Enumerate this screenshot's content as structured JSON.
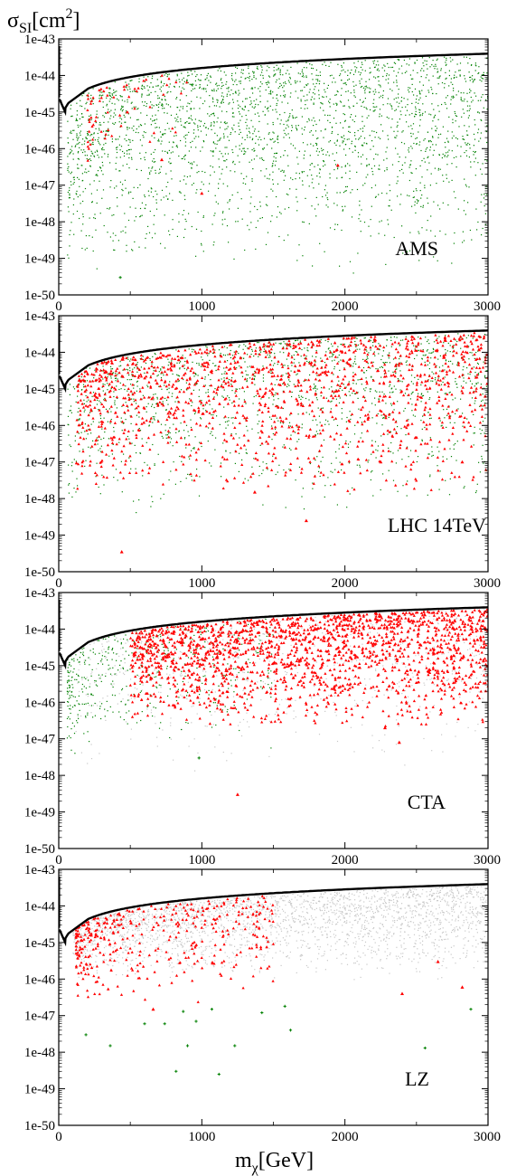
{
  "colors": {
    "background": "#ffffff",
    "allowed_scan": "#008000",
    "detectable": "#ff0000",
    "excluded_gray": "#c8c8c8",
    "limit_curve": "#000000"
  },
  "axes": {
    "ylabel": {
      "main": "σ",
      "sub": "SI",
      "unit_open": "[cm",
      "unit_sup": "2",
      "unit_close": "]"
    },
    "xlabel": {
      "main": "m",
      "sub": "χ",
      "unit": "[GeV]"
    }
  },
  "chart_data": [
    {
      "type": "scatter",
      "panel_label": "AMS",
      "xlim": [
        0,
        3000
      ],
      "ylim": [
        1e-50,
        1e-43
      ],
      "yscale": "log",
      "xticks": [
        "0",
        "1000",
        "2000",
        "3000"
      ],
      "yticks": [
        "1e-50",
        "1e-49",
        "1e-48",
        "1e-47",
        "1e-46",
        "1e-45",
        "1e-44",
        "1e-43"
      ],
      "grid": false,
      "layers": [
        {
          "role": "gray",
          "count": 0,
          "xmin": 120,
          "xmax": 3000,
          "ylogmin": -46.0,
          "xdensity": "uniform",
          "seed": 11
        },
        {
          "role": "green",
          "count": 2600,
          "xmin": 60,
          "xmax": 3000,
          "ylogmin": -49.5,
          "xdensity": "uniform",
          "seed": 12
        },
        {
          "role": "red",
          "count": 60,
          "xmin": 200,
          "xmax": 900,
          "ylogmin": -46.5,
          "xdensity": "low",
          "seed": 13
        }
      ],
      "outliers": [
        {
          "x": 430,
          "y": 3e-50,
          "color": "green"
        },
        {
          "x": 1950,
          "y": 3.5e-47,
          "color": "red"
        },
        {
          "x": 1000,
          "y": 6e-48,
          "color": "red"
        },
        {
          "x": 720,
          "y": 5e-47,
          "color": "red"
        }
      ]
    },
    {
      "type": "scatter",
      "panel_label": "LHC 14TeV",
      "xlim": [
        0,
        3000
      ],
      "ylim": [
        1e-50,
        1e-43
      ],
      "yscale": "log",
      "xticks": [
        "0",
        "1000",
        "2000",
        "3000"
      ],
      "yticks": [
        "1e-50",
        "1e-49",
        "1e-48",
        "1e-47",
        "1e-46",
        "1e-45",
        "1e-44",
        "1e-43"
      ],
      "grid": false,
      "layers": [
        {
          "role": "gray",
          "count": 0,
          "xmin": 120,
          "xmax": 3000,
          "ylogmin": -46.0,
          "xdensity": "uniform",
          "seed": 21
        },
        {
          "role": "green",
          "count": 1500,
          "xmin": 60,
          "xmax": 3000,
          "ylogmin": -48.5,
          "xdensity": "uniform",
          "seed": 22
        },
        {
          "role": "red",
          "count": 1300,
          "xmin": 120,
          "xmax": 3000,
          "ylogmin": -48.0,
          "xdensity": "uniform",
          "seed": 23
        }
      ],
      "outliers": [
        {
          "x": 440,
          "y": 3.5e-50,
          "color": "red"
        },
        {
          "x": 1730,
          "y": 2.5e-49,
          "color": "red"
        },
        {
          "x": 1370,
          "y": 1.5e-48,
          "color": "red"
        },
        {
          "x": 2250,
          "y": 1e-47,
          "color": "red"
        },
        {
          "x": 2820,
          "y": 1e-47,
          "color": "red"
        }
      ]
    },
    {
      "type": "scatter",
      "panel_label": "CTA",
      "xlim": [
        0,
        3000
      ],
      "ylim": [
        1e-50,
        1e-43
      ],
      "yscale": "log",
      "xticks": [
        "0",
        "1000",
        "2000",
        "3000"
      ],
      "yticks": [
        "1e-50",
        "1e-49",
        "1e-48",
        "1e-47",
        "1e-46",
        "1e-45",
        "1e-44",
        "1e-43"
      ],
      "grid": false,
      "layers": [
        {
          "role": "gray",
          "count": 700,
          "xmin": 120,
          "xmax": 3000,
          "ylogmin": -48.0,
          "xdensity": "uniform",
          "seed": 31
        },
        {
          "role": "green",
          "count": 450,
          "xmin": 60,
          "xmax": 1500,
          "ylogmin": -47.5,
          "xdensity": "low",
          "seed": 32
        },
        {
          "role": "red",
          "count": 1800,
          "xmin": 500,
          "xmax": 3000,
          "ylogmin": -46.8,
          "xdensity": "uniform",
          "seed": 33
        }
      ],
      "outliers": [
        {
          "x": 1250,
          "y": 3e-49,
          "color": "red"
        },
        {
          "x": 2280,
          "y": 2e-47,
          "color": "red"
        },
        {
          "x": 2380,
          "y": 8e-48,
          "color": "red"
        },
        {
          "x": 980,
          "y": 3e-48,
          "color": "green"
        }
      ]
    },
    {
      "type": "scatter",
      "panel_label": "LZ",
      "xlim": [
        0,
        3000
      ],
      "ylim": [
        1e-50,
        1e-43
      ],
      "yscale": "log",
      "xticks": [
        "0",
        "1000",
        "2000",
        "3000"
      ],
      "yticks": [
        "1e-50",
        "1e-49",
        "1e-48",
        "1e-47",
        "1e-46",
        "1e-45",
        "1e-44",
        "1e-43"
      ],
      "grid": false,
      "layers": [
        {
          "role": "gray",
          "count": 2400,
          "xmin": 100,
          "xmax": 3000,
          "ylogmin": -46.0,
          "xdensity": "uniform",
          "seed": 41
        },
        {
          "role": "red",
          "count": 380,
          "xmin": 120,
          "xmax": 1500,
          "ylogmin": -46.7,
          "xdensity": "low",
          "seed": 43
        }
      ],
      "outliers": [
        {
          "x": 190,
          "y": 3e-48,
          "color": "green"
        },
        {
          "x": 360,
          "y": 1.5e-48,
          "color": "green"
        },
        {
          "x": 600,
          "y": 6e-48,
          "color": "green"
        },
        {
          "x": 740,
          "y": 6e-48,
          "color": "green"
        },
        {
          "x": 870,
          "y": 1.3e-47,
          "color": "green"
        },
        {
          "x": 960,
          "y": 7e-48,
          "color": "green"
        },
        {
          "x": 1070,
          "y": 1.5e-47,
          "color": "green"
        },
        {
          "x": 820,
          "y": 3e-49,
          "color": "green"
        },
        {
          "x": 900,
          "y": 1.5e-48,
          "color": "green"
        },
        {
          "x": 1120,
          "y": 2.5e-49,
          "color": "green"
        },
        {
          "x": 1230,
          "y": 1.5e-48,
          "color": "green"
        },
        {
          "x": 1420,
          "y": 1.2e-47,
          "color": "green"
        },
        {
          "x": 1580,
          "y": 1.8e-47,
          "color": "green"
        },
        {
          "x": 1620,
          "y": 4e-48,
          "color": "green"
        },
        {
          "x": 2560,
          "y": 1.3e-48,
          "color": "green"
        },
        {
          "x": 2880,
          "y": 1.5e-47,
          "color": "green"
        },
        {
          "x": 660,
          "y": 1.5e-47,
          "color": "red"
        },
        {
          "x": 2400,
          "y": 4e-47,
          "color": "red"
        },
        {
          "x": 2650,
          "y": 3e-46,
          "color": "red"
        },
        {
          "x": 2820,
          "y": 6e-47,
          "color": "red"
        }
      ]
    }
  ]
}
